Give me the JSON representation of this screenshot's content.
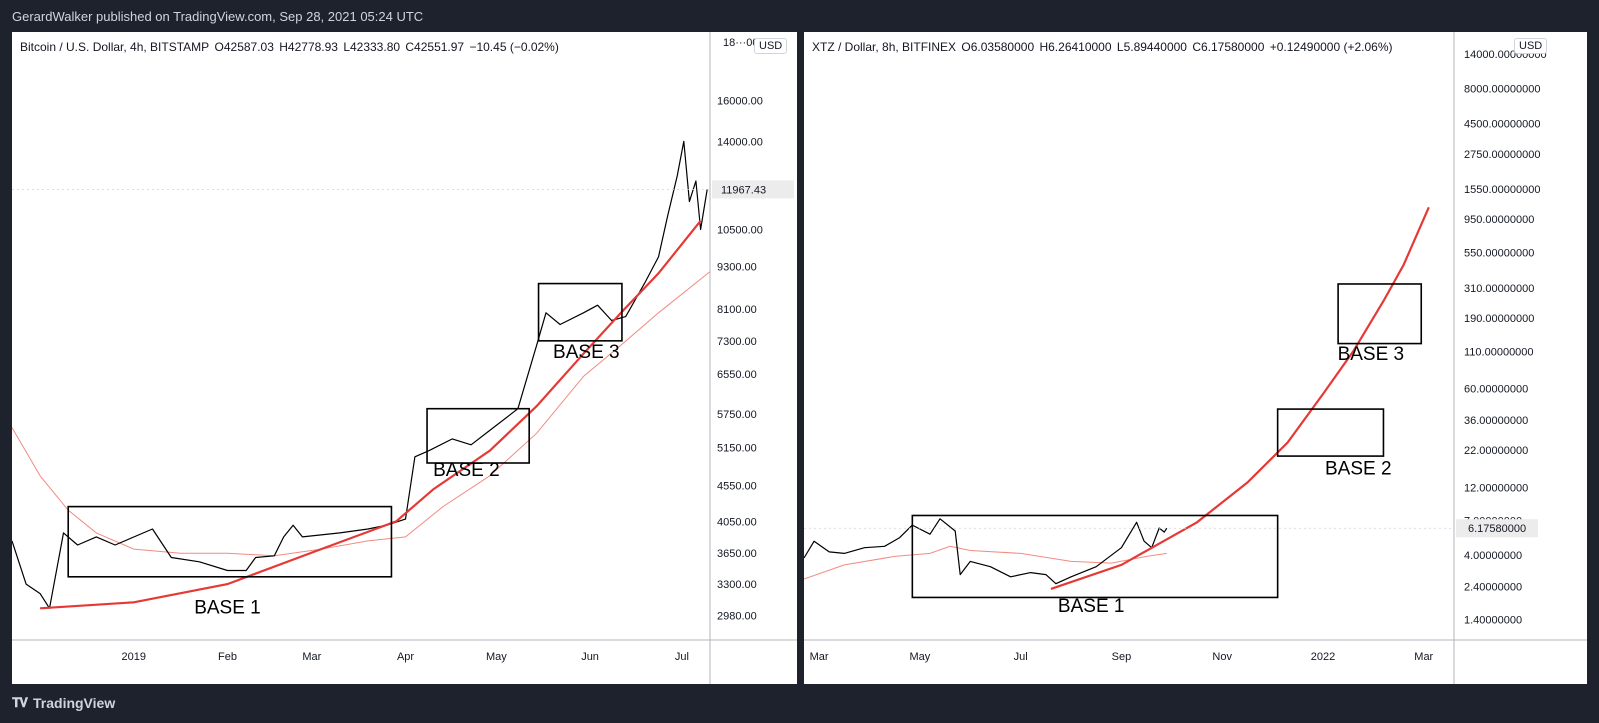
{
  "header": {
    "published": "GerardWalker published on TradingView.com, Sep 28, 2021 05:24 UTC"
  },
  "footer": {
    "logo_text": "TradingView"
  },
  "colors": {
    "curve": "#e53935",
    "ma": "#f28b82",
    "price": "#000000",
    "box": "#000000"
  },
  "chart_data": [
    {
      "type": "line",
      "symbol": "Bitcoin / U.S. Dollar, 4h, BITSTAMP",
      "ohlc": {
        "o": "O42587.03",
        "h": "H42778.93",
        "l": "L42333.80",
        "c": "C42551.97",
        "chg": "−10.45 (−0.02%)"
      },
      "currency": "USD",
      "scale": "log",
      "ylim": [
        2750,
        20000
      ],
      "y_ticks": [
        {
          "v": 16000,
          "label": "16000.00"
        },
        {
          "v": 14000,
          "label": "14000.00"
        },
        {
          "v": 10500,
          "label": "10500.00"
        },
        {
          "v": 9300,
          "label": "9300.00"
        },
        {
          "v": 8100,
          "label": "8100.00"
        },
        {
          "v": 7300,
          "label": "7300.00"
        },
        {
          "v": 6550,
          "label": "6550.00"
        },
        {
          "v": 5750,
          "label": "5750.00"
        },
        {
          "v": 5150,
          "label": "5150.00"
        },
        {
          "v": 4550,
          "label": "4550.00"
        },
        {
          "v": 4050,
          "label": "4050.00"
        },
        {
          "v": 3650,
          "label": "3650.00"
        },
        {
          "v": 3300,
          "label": "3300.00"
        },
        {
          "v": 2980,
          "label": "2980.00"
        }
      ],
      "top_tick_partial": "18···00",
      "price_label": {
        "v": 11967.43,
        "label": "11967.43"
      },
      "xlim": [
        -1.3,
        6.15
      ],
      "x_ticks": [
        {
          "t": 0,
          "label": "2019"
        },
        {
          "t": 1,
          "label": "Feb"
        },
        {
          "t": 1.9,
          "label": "Mar"
        },
        {
          "t": 2.9,
          "label": "Apr"
        },
        {
          "t": 3.87,
          "label": "May"
        },
        {
          "t": 4.87,
          "label": "Jun"
        },
        {
          "t": 5.85,
          "label": "Jul"
        }
      ],
      "price_series": [
        [
          -1.3,
          3800
        ],
        [
          -1.15,
          3300
        ],
        [
          -1.0,
          3200
        ],
        [
          -0.9,
          3050
        ],
        [
          -0.75,
          3900
        ],
        [
          -0.6,
          3750
        ],
        [
          -0.4,
          3850
        ],
        [
          -0.2,
          3750
        ],
        [
          0.2,
          3950
        ],
        [
          0.4,
          3600
        ],
        [
          0.7,
          3550
        ],
        [
          1.0,
          3450
        ],
        [
          1.2,
          3450
        ],
        [
          1.3,
          3600
        ],
        [
          1.5,
          3620
        ],
        [
          1.6,
          3850
        ],
        [
          1.7,
          4000
        ],
        [
          1.8,
          3850
        ],
        [
          2.2,
          3900
        ],
        [
          2.5,
          3950
        ],
        [
          2.7,
          4000
        ],
        [
          2.9,
          4080
        ],
        [
          3.0,
          5000
        ],
        [
          3.15,
          5100
        ],
        [
          3.4,
          5300
        ],
        [
          3.6,
          5200
        ],
        [
          3.8,
          5450
        ],
        [
          4.1,
          5850
        ],
        [
          4.3,
          7200
        ],
        [
          4.4,
          8000
        ],
        [
          4.55,
          7700
        ],
        [
          4.8,
          8000
        ],
        [
          4.95,
          8200
        ],
        [
          5.1,
          7800
        ],
        [
          5.25,
          7900
        ],
        [
          5.45,
          8800
        ],
        [
          5.6,
          9600
        ],
        [
          5.7,
          11000
        ],
        [
          5.8,
          12500
        ],
        [
          5.87,
          14000
        ],
        [
          5.93,
          11500
        ],
        [
          6.0,
          12300
        ],
        [
          6.05,
          10500
        ],
        [
          6.12,
          11967
        ]
      ],
      "curve": [
        [
          -1.0,
          3050
        ],
        [
          0,
          3110
        ],
        [
          1,
          3300
        ],
        [
          2,
          3700
        ],
        [
          2.8,
          4050
        ],
        [
          3.2,
          4500
        ],
        [
          3.8,
          5100
        ],
        [
          4.3,
          5900
        ],
        [
          4.8,
          7000
        ],
        [
          5.2,
          8000
        ],
        [
          5.6,
          9100
        ],
        [
          6.05,
          10800
        ]
      ],
      "ma": [
        [
          -1.3,
          5500
        ],
        [
          -1.0,
          4700
        ],
        [
          -0.7,
          4200
        ],
        [
          -0.4,
          3900
        ],
        [
          0,
          3700
        ],
        [
          0.5,
          3650
        ],
        [
          1,
          3650
        ],
        [
          1.5,
          3620
        ],
        [
          2,
          3700
        ],
        [
          2.5,
          3800
        ],
        [
          2.9,
          3850
        ],
        [
          3.3,
          4250
        ],
        [
          3.8,
          4700
        ],
        [
          4.3,
          5400
        ],
        [
          4.8,
          6500
        ],
        [
          5.2,
          7200
        ],
        [
          5.6,
          8000
        ],
        [
          6.15,
          9150
        ]
      ],
      "boxes": [
        {
          "t0": -0.7,
          "t1": 2.75,
          "v0": 3380,
          "v1": 4250,
          "label": "BASE 1",
          "label_at": [
            1.0,
            3000
          ]
        },
        {
          "t0": 3.13,
          "t1": 4.22,
          "v0": 4900,
          "v1": 5850,
          "label": "BASE 2",
          "label_at": [
            3.55,
            4700
          ]
        },
        {
          "t0": 4.32,
          "t1": 5.21,
          "v0": 7300,
          "v1": 8800,
          "label": "BASE 3",
          "label_at": [
            4.83,
            6900
          ]
        }
      ]
    },
    {
      "type": "line",
      "symbol": "XTZ / Dollar, 8h, BITFINEX",
      "ohlc": {
        "o": "O6.03580000",
        "h": "H6.26410000",
        "l": "L5.89440000",
        "c": "C6.17580000",
        "chg": "+0.12490000 (+2.06%)"
      },
      "currency": "USD",
      "scale": "log",
      "ylim": [
        1.0,
        20000
      ],
      "y_ticks": [
        {
          "v": 14000,
          "label": "14000.00000000"
        },
        {
          "v": 8000,
          "label": "8000.00000000"
        },
        {
          "v": 4500,
          "label": "4500.00000000"
        },
        {
          "v": 2750,
          "label": "2750.00000000"
        },
        {
          "v": 1550,
          "label": "1550.00000000"
        },
        {
          "v": 950,
          "label": "950.00000000"
        },
        {
          "v": 550,
          "label": "550.00000000"
        },
        {
          "v": 310,
          "label": "310.00000000"
        },
        {
          "v": 190,
          "label": "190.00000000"
        },
        {
          "v": 110,
          "label": "110.00000000"
        },
        {
          "v": 60,
          "label": "60.00000000"
        },
        {
          "v": 36,
          "label": "36.00000000"
        },
        {
          "v": 22,
          "label": "22.00000000"
        },
        {
          "v": 12,
          "label": "12.00000000"
        },
        {
          "v": 4,
          "label": "4.00000000"
        },
        {
          "v": 2.4,
          "label": "2.40000000"
        },
        {
          "v": 1.4,
          "label": "1.40000000"
        }
      ],
      "partial_tick": "7.00000000",
      "price_label": {
        "v": 6.1758,
        "label": "6.17580000"
      },
      "xlim": [
        -0.3,
        12.6
      ],
      "x_ticks": [
        {
          "t": 0,
          "label": "Mar"
        },
        {
          "t": 2,
          "label": "May"
        },
        {
          "t": 4,
          "label": "Jul"
        },
        {
          "t": 6,
          "label": "Sep"
        },
        {
          "t": 8,
          "label": "Nov"
        },
        {
          "t": 10,
          "label": "2022"
        },
        {
          "t": 12,
          "label": "Mar"
        }
      ],
      "price_series": [
        [
          -0.3,
          3.8
        ],
        [
          -0.1,
          5.0
        ],
        [
          0.2,
          4.2
        ],
        [
          0.5,
          4.1
        ],
        [
          0.9,
          4.5
        ],
        [
          1.3,
          4.6
        ],
        [
          1.6,
          5.3
        ],
        [
          1.85,
          6.5
        ],
        [
          2.2,
          5.6
        ],
        [
          2.4,
          7.2
        ],
        [
          2.7,
          5.9
        ],
        [
          2.8,
          2.9
        ],
        [
          3.0,
          3.6
        ],
        [
          3.4,
          3.3
        ],
        [
          3.8,
          2.8
        ],
        [
          4.2,
          3.0
        ],
        [
          4.5,
          2.9
        ],
        [
          4.7,
          2.5
        ],
        [
          5.0,
          2.8
        ],
        [
          5.5,
          3.3
        ],
        [
          6.0,
          4.5
        ],
        [
          6.3,
          6.8
        ],
        [
          6.45,
          5.0
        ],
        [
          6.6,
          4.5
        ],
        [
          6.75,
          6.2
        ],
        [
          6.85,
          5.8
        ],
        [
          6.9,
          6.18
        ]
      ],
      "curve": [
        [
          4.6,
          2.3
        ],
        [
          6,
          3.4
        ],
        [
          7.5,
          6.8
        ],
        [
          8.5,
          13
        ],
        [
          9.3,
          25
        ],
        [
          10,
          55
        ],
        [
          10.6,
          110
        ],
        [
          11.2,
          250
        ],
        [
          11.6,
          450
        ],
        [
          12.1,
          1150
        ]
      ],
      "ma": [
        [
          -0.3,
          2.7
        ],
        [
          0.5,
          3.4
        ],
        [
          1.5,
          3.9
        ],
        [
          2.2,
          4.1
        ],
        [
          2.6,
          4.6
        ],
        [
          3.0,
          4.3
        ],
        [
          4.0,
          4.1
        ],
        [
          5.0,
          3.6
        ],
        [
          5.8,
          3.5
        ],
        [
          6.5,
          3.9
        ],
        [
          6.9,
          4.1
        ]
      ],
      "boxes": [
        {
          "t0": 1.85,
          "t1": 9.1,
          "v0": 2.0,
          "v1": 7.6,
          "label": "BASE 1",
          "label_at": [
            5.4,
            1.58
          ]
        },
        {
          "t0": 9.1,
          "t1": 11.2,
          "v0": 20,
          "v1": 43,
          "label": "BASE 2",
          "label_at": [
            10.7,
            14.8
          ]
        },
        {
          "t0": 10.3,
          "t1": 11.95,
          "v0": 125,
          "v1": 330,
          "label": "BASE 3",
          "label_at": [
            10.95,
            96
          ]
        }
      ]
    }
  ]
}
